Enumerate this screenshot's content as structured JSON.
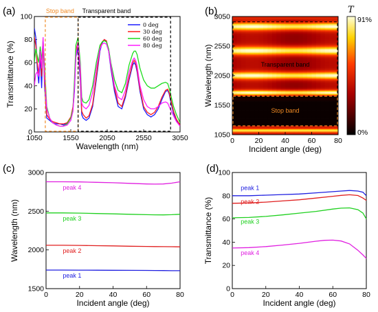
{
  "chart_data": [
    {
      "panel": "(a)",
      "type": "line",
      "xlabel": "Wavelength (nm)",
      "ylabel": "Transmittance (%)",
      "xlim": [
        1050,
        3050
      ],
      "ylim": [
        0,
        100
      ],
      "xticks": [
        1050,
        1550,
        2050,
        2550,
        3050
      ],
      "yticks": [
        0,
        20,
        40,
        60,
        80,
        100
      ],
      "legend": "top-right",
      "regions": [
        {
          "label": "Stop band",
          "x": [
            1200,
            1650
          ],
          "color": "#f08a24"
        },
        {
          "label": "Transparent band",
          "x": [
            1650,
            2920
          ],
          "color": "#000000"
        }
      ],
      "series": [
        {
          "name": "0 deg",
          "color": "#1c1cff",
          "x": [
            1050,
            1070,
            1090,
            1110,
            1130,
            1150,
            1170,
            1190,
            1220,
            1260,
            1300,
            1350,
            1400,
            1450,
            1500,
            1550,
            1580,
            1600,
            1620,
            1650,
            1680,
            1700,
            1720,
            1760,
            1800,
            1850,
            1900,
            1950,
            1980,
            2010,
            2040,
            2070,
            2100,
            2150,
            2200,
            2250,
            2300,
            2350,
            2400,
            2420,
            2440,
            2460,
            2500,
            2550,
            2600,
            2650,
            2700,
            2750,
            2800,
            2850,
            2880,
            2900,
            2930,
            2960,
            3000,
            3050
          ],
          "y": [
            90,
            82,
            55,
            42,
            65,
            38,
            80,
            40,
            12,
            10,
            8,
            7,
            7,
            6,
            8,
            12,
            20,
            35,
            65,
            72,
            45,
            15,
            12,
            10,
            12,
            22,
            45,
            70,
            77,
            80,
            78,
            70,
            55,
            35,
            22,
            20,
            30,
            45,
            58,
            60,
            58,
            52,
            35,
            20,
            15,
            13,
            15,
            20,
            28,
            35,
            36,
            33,
            24,
            16,
            10,
            5
          ]
        },
        {
          "name": "30 deg",
          "color": "#ff1c1c",
          "x": [
            1050,
            1070,
            1090,
            1110,
            1130,
            1150,
            1170,
            1190,
            1220,
            1260,
            1300,
            1350,
            1400,
            1450,
            1500,
            1550,
            1580,
            1600,
            1620,
            1650,
            1680,
            1700,
            1720,
            1760,
            1800,
            1850,
            1900,
            1950,
            1980,
            2010,
            2040,
            2070,
            2100,
            2150,
            2200,
            2250,
            2300,
            2350,
            2400,
            2420,
            2440,
            2460,
            2500,
            2550,
            2600,
            2650,
            2700,
            2750,
            2800,
            2850,
            2880,
            2900,
            2930,
            2960,
            3000,
            3050
          ],
          "y": [
            82,
            75,
            60,
            50,
            70,
            48,
            78,
            45,
            15,
            11,
            9,
            8,
            7,
            7,
            8,
            13,
            22,
            40,
            70,
            78,
            50,
            18,
            15,
            12,
            14,
            24,
            48,
            72,
            78,
            80,
            79,
            71,
            57,
            38,
            25,
            22,
            32,
            47,
            60,
            62,
            60,
            54,
            37,
            22,
            17,
            15,
            17,
            22,
            30,
            36,
            37,
            34,
            26,
            18,
            11,
            6
          ]
        },
        {
          "name": "60 deg",
          "color": "#1cdc1c",
          "x": [
            1050,
            1070,
            1090,
            1110,
            1130,
            1150,
            1170,
            1190,
            1220,
            1260,
            1300,
            1350,
            1400,
            1450,
            1500,
            1550,
            1580,
            1600,
            1620,
            1650,
            1680,
            1700,
            1720,
            1760,
            1800,
            1850,
            1900,
            1950,
            1980,
            2010,
            2040,
            2070,
            2100,
            2150,
            2200,
            2250,
            2300,
            2350,
            2400,
            2420,
            2440,
            2460,
            2500,
            2550,
            2600,
            2650,
            2700,
            2750,
            2800,
            2850,
            2880,
            2900,
            2930,
            2960,
            3000,
            3050
          ],
          "y": [
            60,
            72,
            66,
            60,
            74,
            62,
            80,
            58,
            22,
            12,
            8,
            6,
            5,
            5,
            7,
            12,
            20,
            45,
            75,
            82,
            60,
            30,
            26,
            25,
            28,
            40,
            60,
            75,
            78,
            79,
            78,
            72,
            60,
            45,
            36,
            34,
            42,
            58,
            68,
            70,
            70,
            67,
            55,
            45,
            40,
            38,
            38,
            40,
            42,
            43,
            42,
            38,
            30,
            22,
            15,
            8
          ]
        },
        {
          "name": "80 deg",
          "color": "#ff1cff",
          "x": [
            1050,
            1070,
            1090,
            1110,
            1130,
            1150,
            1170,
            1190,
            1220,
            1260,
            1300,
            1350,
            1400,
            1450,
            1500,
            1550,
            1580,
            1600,
            1620,
            1650,
            1680,
            1700,
            1720,
            1760,
            1800,
            1850,
            1900,
            1950,
            1980,
            2010,
            2040,
            2070,
            2100,
            2150,
            2200,
            2250,
            2300,
            2350,
            2400,
            2420,
            2440,
            2460,
            2500,
            2550,
            2600,
            2650,
            2700,
            2750,
            2800,
            2850,
            2880,
            2900,
            2930,
            2960,
            3000,
            3050
          ],
          "y": [
            40,
            50,
            52,
            48,
            70,
            55,
            82,
            50,
            20,
            12,
            8,
            6,
            5,
            5,
            6,
            10,
            18,
            38,
            65,
            78,
            55,
            25,
            22,
            20,
            23,
            34,
            55,
            72,
            76,
            77,
            76,
            70,
            58,
            40,
            30,
            28,
            36,
            52,
            62,
            64,
            62,
            57,
            40,
            28,
            22,
            20,
            20,
            22,
            25,
            26,
            25,
            22,
            18,
            14,
            9,
            5
          ]
        }
      ]
    },
    {
      "panel": "(b)",
      "type": "heatmap",
      "xlabel": "Incident angle (deg)",
      "ylabel": "Wavelength (nm)",
      "colorbar_label": "T",
      "colorbar_ticks": [
        "91%",
        "0%"
      ],
      "colorbar_max": 91,
      "xlim": [
        0,
        80
      ],
      "ylim": [
        1050,
        3050
      ],
      "xticks": [
        0,
        20,
        40,
        60,
        80
      ],
      "yticks": [
        1050,
        1550,
        2050,
        2550,
        3050
      ],
      "regions": [
        {
          "label": "Transparent band",
          "y": [
            1700,
            2960
          ],
          "color": "#000000"
        },
        {
          "label": "Stop band",
          "y": [
            1200,
            1700
          ],
          "color": "#f08a24"
        }
      ],
      "annotations": [
        {
          "text": "Transparent band",
          "x": 40,
          "y": 2200
        },
        {
          "text": "Stop band",
          "x": 40,
          "y": 1420
        }
      ],
      "peaks_nm": [
        1735,
        2055,
        2470,
        2880
      ]
    },
    {
      "panel": "(c)",
      "type": "line",
      "xlabel": "Incident angle (deg)",
      "ylabel": "Wavelength (nm)",
      "xlim": [
        0,
        80
      ],
      "ylim": [
        1500,
        3000
      ],
      "xticks": [
        0,
        20,
        40,
        60,
        80
      ],
      "yticks": [
        1500,
        2000,
        2500,
        3000
      ],
      "series": [
        {
          "name": "peak 4",
          "color": "#e01ee0",
          "x": [
            0,
            10,
            20,
            30,
            40,
            50,
            60,
            65,
            70,
            75,
            80
          ],
          "y": [
            2880,
            2880,
            2878,
            2873,
            2868,
            2860,
            2852,
            2850,
            2852,
            2862,
            2880
          ]
        },
        {
          "name": "peak 3",
          "color": "#1ed01e",
          "x": [
            0,
            10,
            20,
            30,
            40,
            50,
            60,
            65,
            70,
            75,
            80
          ],
          "y": [
            2478,
            2478,
            2475,
            2470,
            2466,
            2460,
            2455,
            2453,
            2452,
            2455,
            2460
          ]
        },
        {
          "name": "peak 2",
          "color": "#e01e1e",
          "x": [
            0,
            10,
            20,
            30,
            40,
            50,
            60,
            65,
            70,
            75,
            80
          ],
          "y": [
            2060,
            2060,
            2058,
            2055,
            2052,
            2048,
            2045,
            2043,
            2042,
            2041,
            2040
          ]
        },
        {
          "name": "peak 1",
          "color": "#1e1ee0",
          "x": [
            0,
            10,
            20,
            30,
            40,
            50,
            60,
            65,
            70,
            75,
            80
          ],
          "y": [
            1740,
            1740,
            1739,
            1738,
            1737,
            1736,
            1735,
            1734,
            1733,
            1732,
            1732
          ]
        }
      ]
    },
    {
      "panel": "(d)",
      "type": "line",
      "xlabel": "Incident angle (deg)",
      "ylabel": "Transmittance (%)",
      "xlim": [
        0,
        80
      ],
      "ylim": [
        0,
        100
      ],
      "xticks": [
        0,
        20,
        40,
        60,
        80
      ],
      "yticks": [
        0,
        20,
        40,
        60,
        80,
        100
      ],
      "series": [
        {
          "name": "peak 1",
          "color": "#1e1ee0",
          "x": [
            0,
            10,
            20,
            30,
            40,
            50,
            60,
            65,
            70,
            75,
            78,
            80
          ],
          "y": [
            80,
            80,
            80.5,
            81,
            81.5,
            82.5,
            83.5,
            84,
            84.5,
            84,
            83,
            80
          ]
        },
        {
          "name": "peak 2",
          "color": "#e01e1e",
          "x": [
            0,
            10,
            20,
            30,
            40,
            50,
            60,
            65,
            70,
            75,
            78,
            80
          ],
          "y": [
            73.5,
            73.8,
            74.5,
            75.5,
            76.5,
            78,
            79.5,
            80.3,
            80.8,
            80.2,
            78,
            76
          ]
        },
        {
          "name": "peak 3",
          "color": "#1ed01e",
          "x": [
            0,
            10,
            20,
            30,
            40,
            50,
            60,
            65,
            70,
            75,
            78,
            80
          ],
          "y": [
            61,
            61.3,
            62.2,
            63.5,
            65,
            66.5,
            68.5,
            69.3,
            69.5,
            68,
            65,
            60
          ]
        },
        {
          "name": "peak 4",
          "color": "#e01ee0",
          "x": [
            0,
            10,
            20,
            30,
            40,
            50,
            55,
            60,
            65,
            70,
            75,
            78,
            80
          ],
          "y": [
            35,
            35.3,
            36.2,
            37.5,
            39,
            40.8,
            41.6,
            41.8,
            41,
            38.5,
            33,
            29,
            26
          ]
        }
      ],
      "labels": [
        {
          "text": "peak 1",
          "x": 5,
          "y": 85
        },
        {
          "text": "peak 2",
          "x": 5,
          "y": 73
        },
        {
          "text": "peak 3",
          "x": 5,
          "y": 56
        },
        {
          "text": "peak 4",
          "x": 5,
          "y": 29
        }
      ]
    }
  ],
  "panel_c_labels": [
    {
      "text": "peak 4",
      "x": 10,
      "y": 2780
    },
    {
      "text": "peak 3",
      "x": 10,
      "y": 2380
    },
    {
      "text": "peak 2",
      "x": 10,
      "y": 1960
    },
    {
      "text": "peak 1",
      "x": 10,
      "y": 1640
    }
  ]
}
